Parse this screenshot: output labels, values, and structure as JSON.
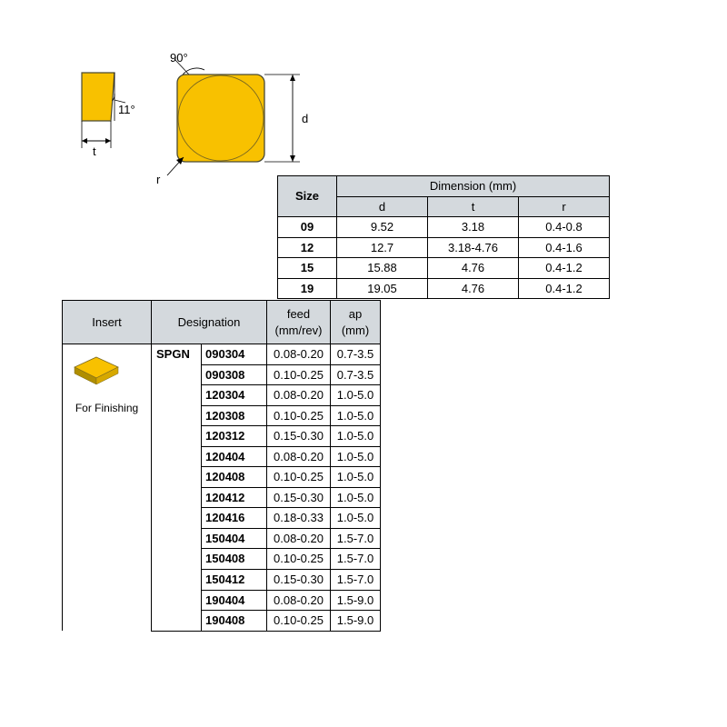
{
  "diagram": {
    "angle_90": "90°",
    "angle_11": "11°",
    "label_t": "t",
    "label_d": "d",
    "label_r": "r",
    "shape_fill": "#f8c100",
    "shape_stroke": "#4a4a34",
    "line_color": "#000000"
  },
  "dimension_table": {
    "header_size": "Size",
    "header_dimension": "Dimension (mm)",
    "header_d": "d",
    "header_t": "t",
    "header_r": "r",
    "rows": [
      {
        "size": "09",
        "d": "9.52",
        "t": "3.18",
        "r": "0.4-0.8"
      },
      {
        "size": "12",
        "d": "12.7",
        "t": "3.18-4.76",
        "r": "0.4-1.6"
      },
      {
        "size": "15",
        "d": "15.88",
        "t": "4.76",
        "r": "0.4-1.2"
      },
      {
        "size": "19",
        "d": "19.05",
        "t": "4.76",
        "r": "0.4-1.2"
      }
    ]
  },
  "spec_table": {
    "header_insert": "Insert",
    "header_designation": "Designation",
    "header_feed": "feed\n(mm/rev)",
    "header_ap": "ap\n(mm)",
    "designation_prefix": "SPGN",
    "insert_label": "For Finishing",
    "insert_fill": "#f8c100",
    "insert_dark": "#b08e00",
    "rows": [
      {
        "code": "090304",
        "feed": "0.08-0.20",
        "ap": "0.7-3.5"
      },
      {
        "code": "090308",
        "feed": "0.10-0.25",
        "ap": "0.7-3.5"
      },
      {
        "code": "120304",
        "feed": "0.08-0.20",
        "ap": "1.0-5.0"
      },
      {
        "code": "120308",
        "feed": "0.10-0.25",
        "ap": "1.0-5.0"
      },
      {
        "code": "120312",
        "feed": "0.15-0.30",
        "ap": "1.0-5.0"
      },
      {
        "code": "120404",
        "feed": "0.08-0.20",
        "ap": "1.0-5.0"
      },
      {
        "code": "120408",
        "feed": "0.10-0.25",
        "ap": "1.0-5.0"
      },
      {
        "code": "120412",
        "feed": "0.15-0.30",
        "ap": "1.0-5.0"
      },
      {
        "code": "120416",
        "feed": "0.18-0.33",
        "ap": "1.0-5.0"
      },
      {
        "code": "150404",
        "feed": "0.08-0.20",
        "ap": "1.5-7.0"
      },
      {
        "code": "150408",
        "feed": "0.10-0.25",
        "ap": "1.5-7.0"
      },
      {
        "code": "150412",
        "feed": "0.15-0.30",
        "ap": "1.5-7.0"
      },
      {
        "code": "190404",
        "feed": "0.08-0.20",
        "ap": "1.5-9.0"
      },
      {
        "code": "190408",
        "feed": "0.10-0.25",
        "ap": "1.5-9.0"
      }
    ]
  }
}
